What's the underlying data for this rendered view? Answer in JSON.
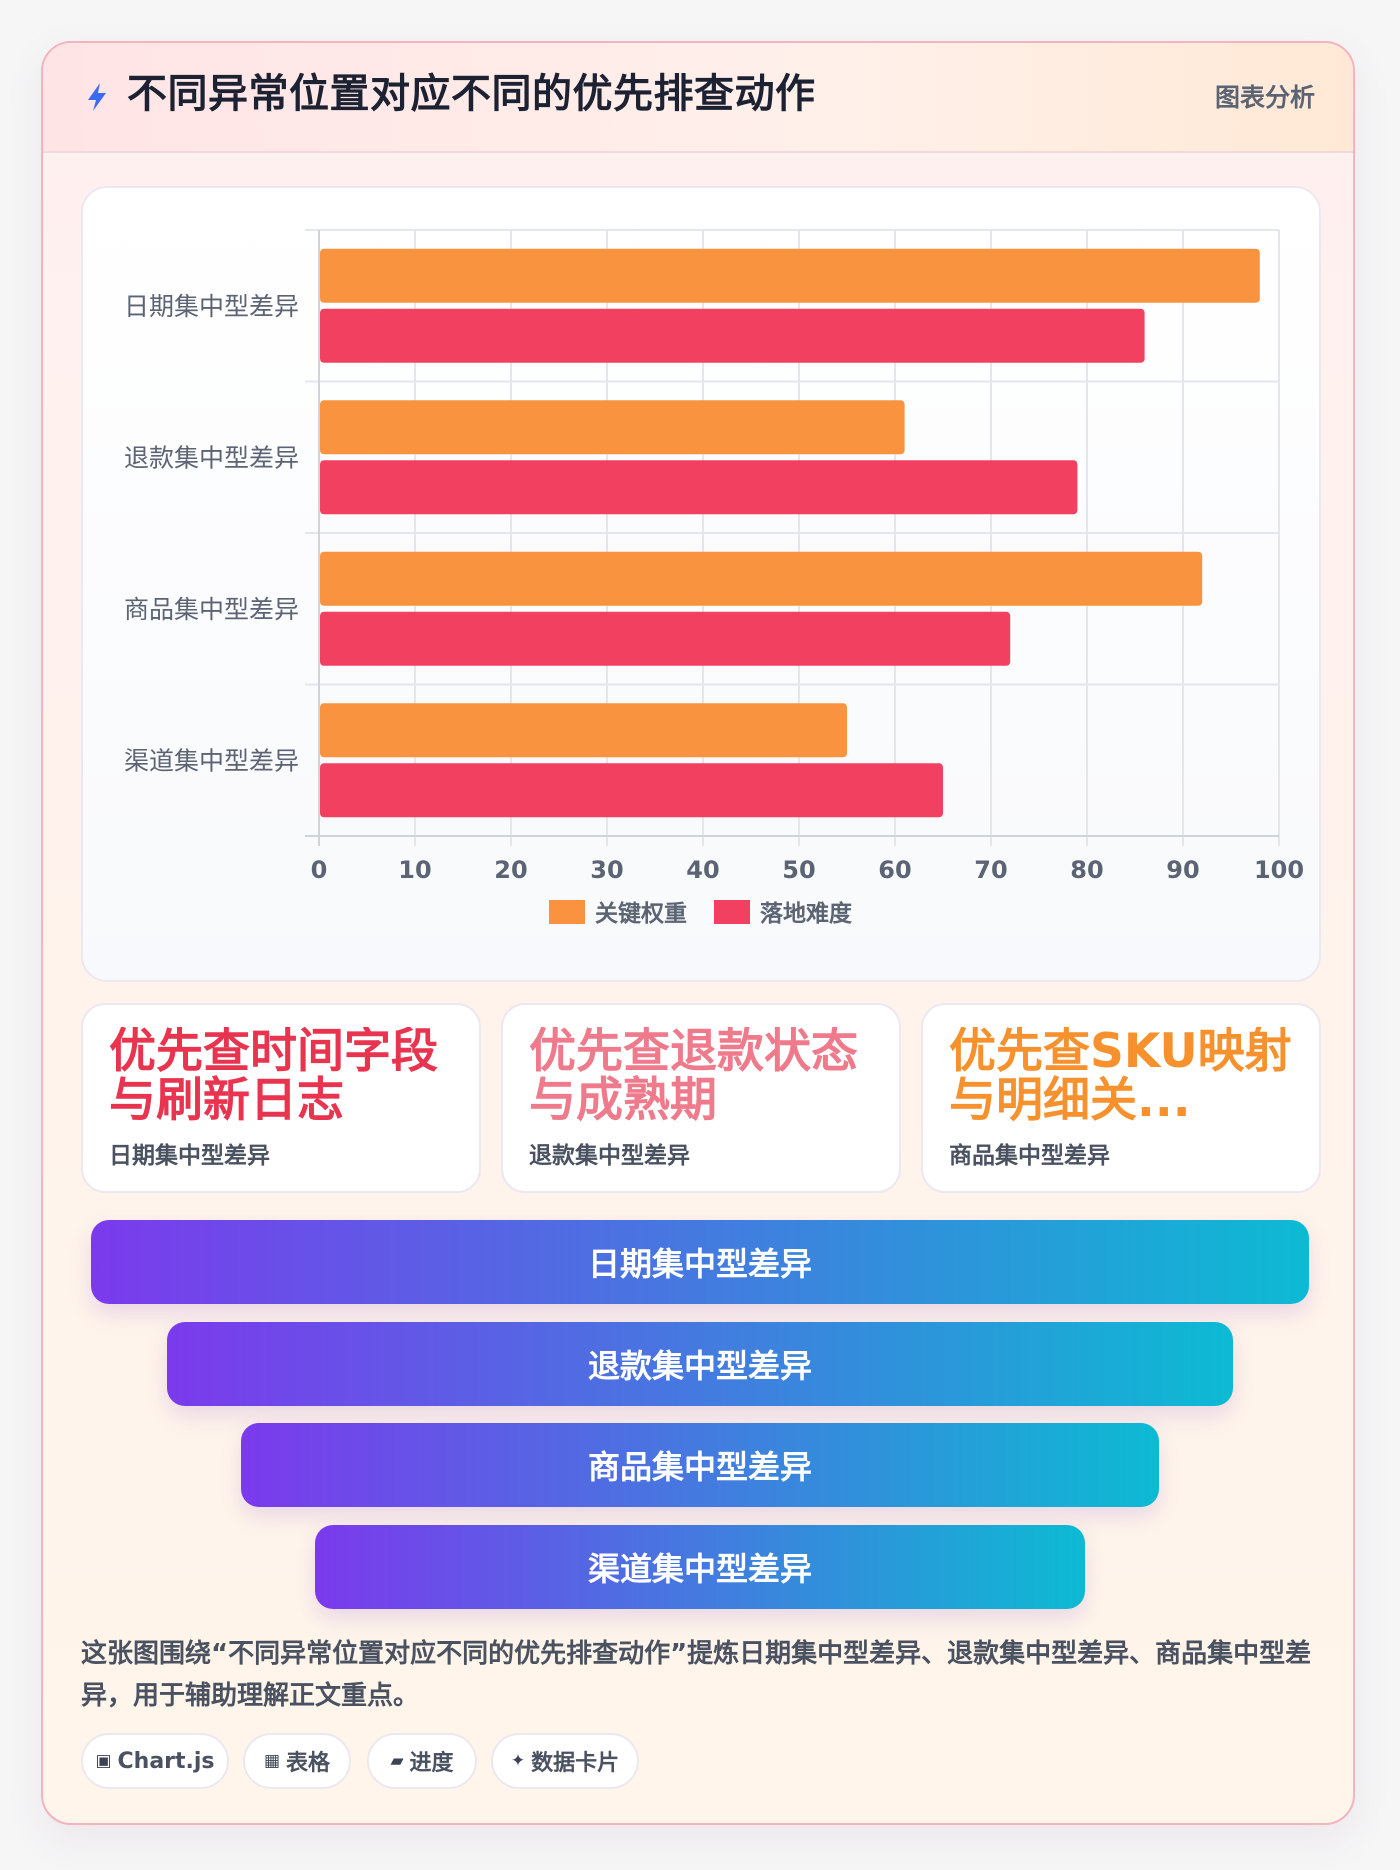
{
  "header": {
    "title": "不同异常位置对应不同的优先排查动作",
    "tag": "图表分析",
    "icon": "bolt-icon"
  },
  "chart_data": {
    "type": "bar",
    "orientation": "horizontal",
    "categories": [
      "日期集中型差异",
      "退款集中型差异",
      "商品集中型差异",
      "渠道集中型差异"
    ],
    "series": [
      {
        "name": "关键权重",
        "color": "#f9933f",
        "values": [
          98,
          61,
          92,
          55
        ]
      },
      {
        "name": "落地难度",
        "color": "#f24060",
        "values": [
          86,
          79,
          72,
          65
        ]
      }
    ],
    "xlim": [
      0,
      100
    ],
    "xticks": [
      "0",
      "10",
      "20",
      "30",
      "40",
      "50",
      "60",
      "70",
      "80",
      "90",
      "100"
    ],
    "grid": true,
    "legend": "bottom-center"
  },
  "stats": [
    {
      "big": "优先查时间字段与刷新日志",
      "sub": "日期集中型差异",
      "color": "#e8344f"
    },
    {
      "big": "优先查退款状态与成熟期",
      "sub": "退款集中型差异",
      "color": "#ef7a8b"
    },
    {
      "big": "优先查SKU映射与明细关...",
      "sub": "商品集中型差异",
      "color": "#f7912e"
    }
  ],
  "funnel": [
    "日期集中型差异",
    "退款集中型差异",
    "商品集中型差异",
    "渠道集中型差异"
  ],
  "description": "这张图围绕“不同异常位置对应不同的优先排查动作”提炼日期集中型差异、退款集中型差异、商品集中型差异，用于辅助理解正文重点。",
  "chips": [
    {
      "icon": "▣",
      "icon_name": "chart-icon",
      "label": "Chart.js"
    },
    {
      "icon": "▦",
      "icon_name": "table-icon",
      "label": "表格"
    },
    {
      "icon": "▰",
      "icon_name": "progress-icon",
      "label": "进度"
    },
    {
      "icon": "✦",
      "icon_name": "sparkle-icon",
      "label": "数据卡片"
    }
  ]
}
